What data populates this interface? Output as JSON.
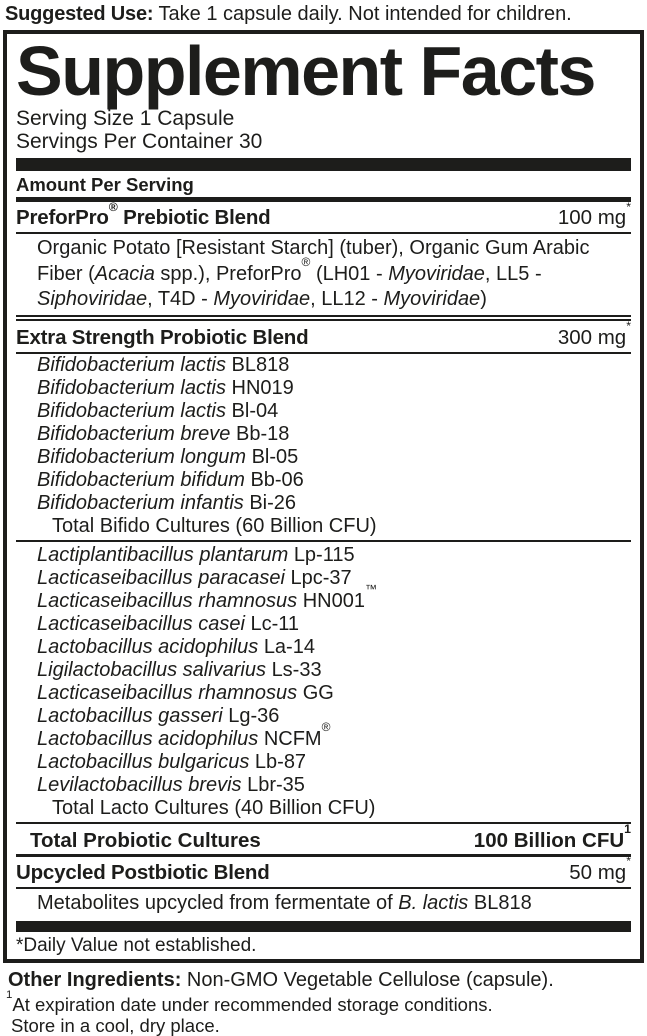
{
  "suggested_use": {
    "label": "Suggested Use:",
    "text": " Take 1 capsule daily. Not intended for children."
  },
  "panel": {
    "title": "Supplement Facts",
    "serving_size": "Serving Size 1 Capsule",
    "servings_per_container": "Servings Per Container 30",
    "amount_per_serving": "Amount Per Serving",
    "ink_color": "#1d1d1b",
    "paper_color": "#ffffff",
    "sections": {
      "prebiotic": {
        "name": "PreforPro® Prebiotic Blend",
        "amount": "100 mg",
        "amount_sup": "*",
        "description_segments": [
          {
            "text": "Organic Potato [Resistant Starch] (tuber), Organic Gum Arabic Fiber (",
            "italic": false
          },
          {
            "text": "Acacia",
            "italic": true
          },
          {
            "text": " spp.), PreforPro® (LH01 - ",
            "italic": false
          },
          {
            "text": "Myoviridae",
            "italic": true
          },
          {
            "text": ", LL5 - ",
            "italic": false
          },
          {
            "text": "Siphoviridae",
            "italic": true
          },
          {
            "text": ", T4D - ",
            "italic": false
          },
          {
            "text": "Myoviridae",
            "italic": true
          },
          {
            "text": ", LL12 - ",
            "italic": false
          },
          {
            "text": "Myoviridae",
            "italic": true
          },
          {
            "text": ")",
            "italic": false
          }
        ]
      },
      "probiotic": {
        "name": "Extra Strength Probiotic Blend",
        "amount": "300 mg",
        "amount_sup": "*",
        "bifido_strains": [
          {
            "species": "Bifidobacterium lactis",
            "strain": "BL818"
          },
          {
            "species": "Bifidobacterium lactis",
            "strain": "HN019"
          },
          {
            "species": "Bifidobacterium lactis",
            "strain": "Bl-04"
          },
          {
            "species": "Bifidobacterium breve",
            "strain": "Bb-18"
          },
          {
            "species": "Bifidobacterium longum",
            "strain": "Bl-05"
          },
          {
            "species": "Bifidobacterium bifidum",
            "strain": "Bb-06"
          },
          {
            "species": "Bifidobacterium infantis",
            "strain": "Bi-26"
          }
        ],
        "bifido_total": "Total Bifido Cultures (60 Billion CFU)",
        "lacto_strains": [
          {
            "species": "Lactiplantibacillus plantarum",
            "strain": "Lp-115"
          },
          {
            "species": "Lacticaseibacillus paracasei",
            "strain": "Lpc-37"
          },
          {
            "species": "Lacticaseibacillus rhamnosus",
            "strain": "HN001™"
          },
          {
            "species": "Lacticaseibacillus casei",
            "strain": "Lc-11"
          },
          {
            "species": "Lactobacillus acidophilus",
            "strain": "La-14"
          },
          {
            "species": "Ligilactobacillus salivarius",
            "strain": "Ls-33"
          },
          {
            "species": "Lacticaseibacillus rhamnosus",
            "strain": "GG"
          },
          {
            "species": "Lactobacillus gasseri",
            "strain": "Lg-36"
          },
          {
            "species": "Lactobacillus acidophilus",
            "strain": "NCFM®"
          },
          {
            "species": "Lactobacillus bulgaricus",
            "strain": "Lb-87"
          },
          {
            "species": "Levilactobacillus brevis",
            "strain": "Lbr-35"
          }
        ],
        "lacto_total": "Total Lacto Cultures (40 Billion CFU)"
      },
      "total_probiotic": {
        "name": "Total Probiotic Cultures",
        "amount": "100 Billion CFU",
        "amount_sup": "1"
      },
      "postbiotic": {
        "name": "Upcycled Postbiotic Blend",
        "amount": "50 mg",
        "amount_sup": "*",
        "description_segments": [
          {
            "text": "Metabolites upcycled from fermentate of ",
            "italic": false
          },
          {
            "text": "B. lactis",
            "italic": true
          },
          {
            "text": " BL818",
            "italic": false
          }
        ]
      }
    },
    "daily_value_note": "*Daily Value not established."
  },
  "other_ingredients": {
    "label": "Other Ingredients:",
    "text": " Non-GMO Vegetable Cellulose (capsule)."
  },
  "storage_notes": [
    {
      "sup": "1",
      "text": "At expiration date under recommended storage conditions."
    },
    {
      "sup": "",
      "text": "Store in a cool, dry place."
    }
  ]
}
